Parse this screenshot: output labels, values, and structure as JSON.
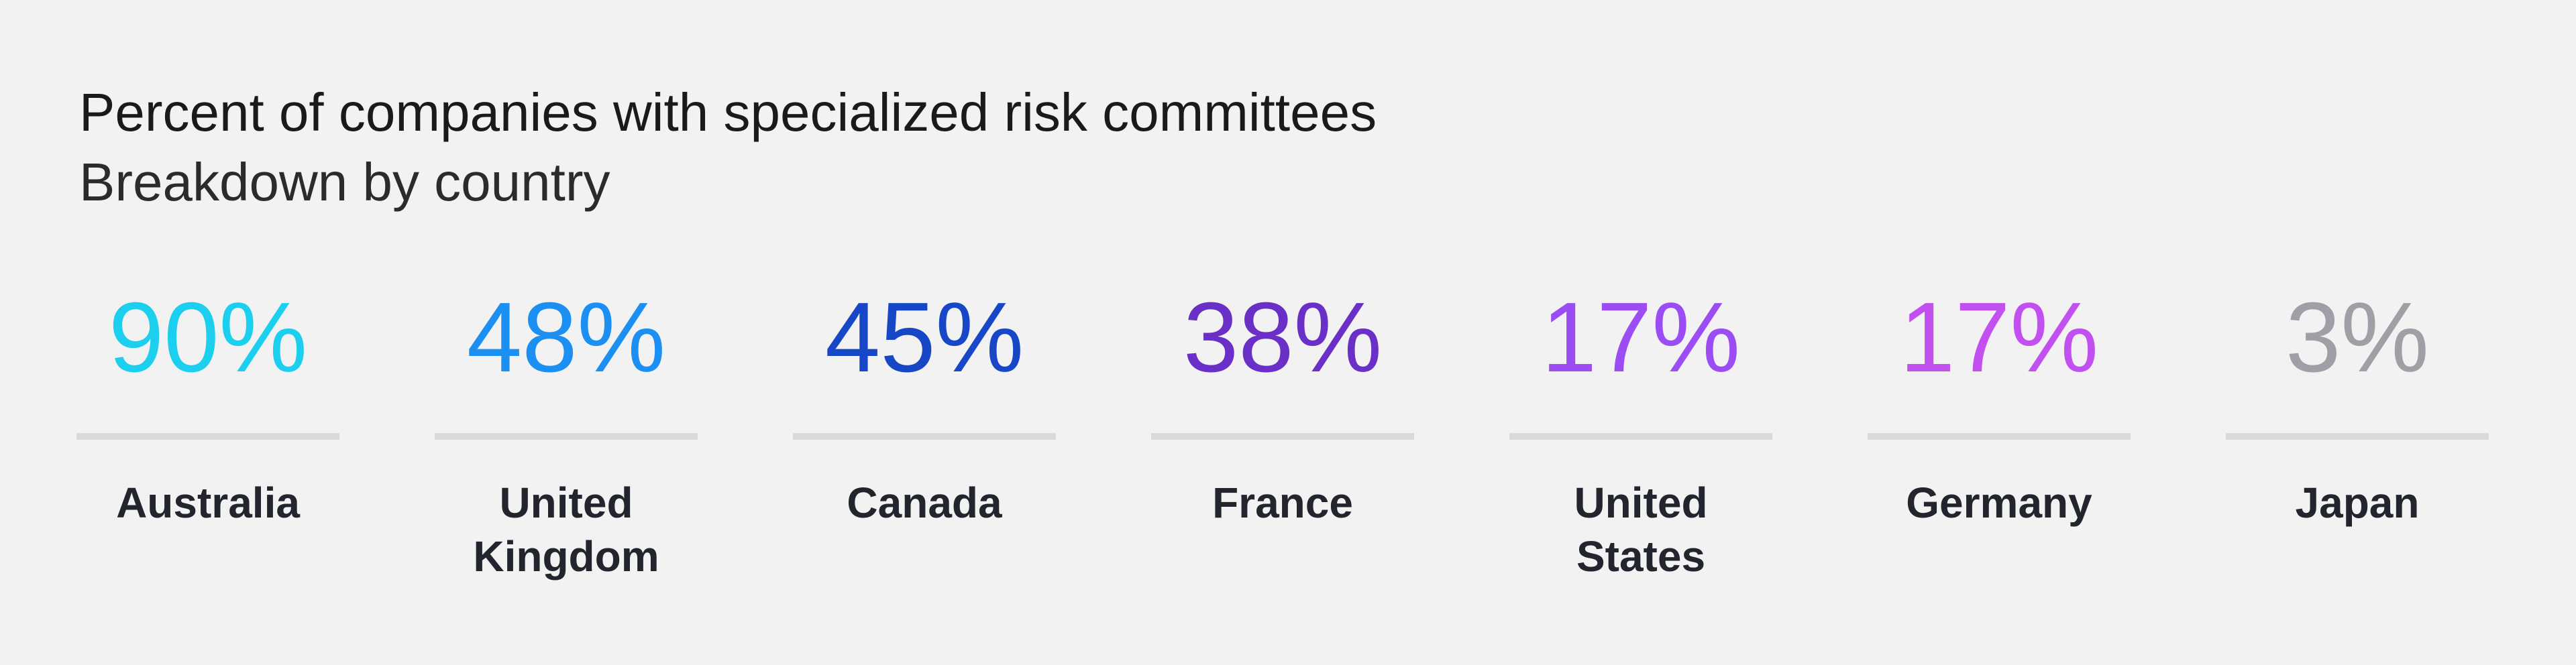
{
  "header": {
    "title": "Percent of companies with specialized risk committees",
    "subtitle": "Breakdown by country"
  },
  "chart_data": {
    "type": "table",
    "title": "Percent of companies with specialized risk committees",
    "subtitle": "Breakdown by country",
    "categories": [
      "Australia",
      "United Kingdom",
      "Canada",
      "France",
      "United States",
      "Germany",
      "Japan"
    ],
    "values": [
      90,
      48,
      45,
      38,
      17,
      17,
      3
    ],
    "value_labels": [
      "90%",
      "48%",
      "45%",
      "38%",
      "17%",
      "17%",
      "3%"
    ],
    "display_labels": [
      "Australia",
      "United\nKingdom",
      "Canada",
      "France",
      "United\nStates",
      "Germany",
      "Japan"
    ],
    "colors": [
      "#1ccfee",
      "#1b8ff2",
      "#1747c6",
      "#6a2fc7",
      "#9b4cf2",
      "#c24ff0",
      "#9ea0a6"
    ],
    "unit": "%"
  }
}
